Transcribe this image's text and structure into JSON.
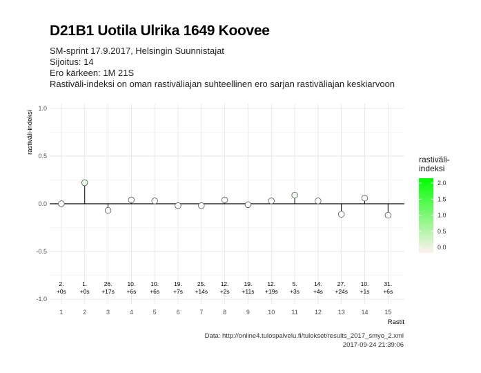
{
  "header": {
    "title": "D21B1 Uotila Ulrika 1649 Koovee",
    "subtitle_lines": [
      "SM-sprint 17.9.2017, Helsingin Suunnistajat",
      "Sijoitus: 14",
      "Ero kärkeen: 1M 21S",
      "Rastiväli-indeksi on oman rastiväliajan suhteellinen ero sarjan rastiväliajan keskiarvoon"
    ]
  },
  "caption": {
    "line1": "Data: http://online4.tulospalvelu.fi/tulokset/results_2017_smyo_2.xml",
    "line2": "2017-09-24 21:39:06"
  },
  "legend": {
    "title_line1": "rastiväli-",
    "title_line2": "indeksi",
    "ticks": [
      "2.0",
      "1.5",
      "1.0",
      "0.5",
      "0.0"
    ],
    "colors": {
      "high": "#00ff00",
      "low": "#fff0f0"
    }
  },
  "chart_data": {
    "type": "scatter",
    "title": "D21B1 Uotila Ulrika 1649 Koovee",
    "xlabel": "Rastit",
    "ylabel": "rastiväli-indeksi",
    "x": [
      1,
      2,
      3,
      4,
      5,
      6,
      7,
      8,
      9,
      10,
      11,
      12,
      13,
      14,
      15
    ],
    "values": [
      0.0,
      0.22,
      -0.07,
      0.04,
      0.03,
      -0.02,
      -0.02,
      0.04,
      -0.01,
      0.03,
      0.09,
      0.03,
      -0.11,
      0.06,
      -0.12
    ],
    "positions": [
      "2.",
      "1.",
      "26.",
      "10.",
      "10.",
      "19.",
      "25.",
      "12.",
      "19.",
      "12.",
      "5.",
      "14.",
      "27.",
      "10.",
      "31."
    ],
    "time_diffs": [
      "+0s",
      "+0s",
      "+17s",
      "+6s",
      "+6s",
      "+7s",
      "+14s",
      "+2s",
      "+11s",
      "+19s",
      "+3s",
      "+4s",
      "+24s",
      "+1s",
      "+6s"
    ],
    "xticks": [
      "1",
      "2",
      "3",
      "4",
      "5",
      "6",
      "7",
      "8",
      "9",
      "10",
      "11",
      "12",
      "13",
      "14",
      "15"
    ],
    "yticks": [
      "1.0",
      "0.5",
      "0.0",
      "-0.5",
      "-1.0"
    ],
    "ytick_values": [
      1.0,
      0.5,
      0.0,
      -0.5,
      -1.0
    ],
    "ylim": [
      -1.05,
      1.05
    ],
    "xlim": [
      0.5,
      15.7
    ],
    "grid": true,
    "legend_position": "right"
  }
}
